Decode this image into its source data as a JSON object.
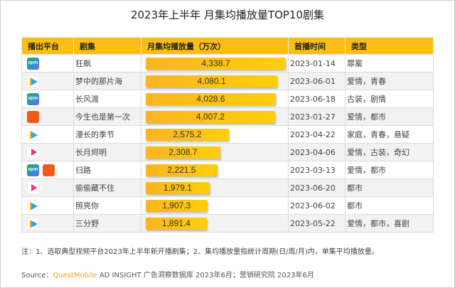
{
  "chart_data": {
    "type": "table",
    "title": "2023年上半年 月集均播放量TOP10剧集",
    "columns": [
      "播出平台",
      "剧集",
      "月集均播放量（万次）",
      "首播时间",
      "类型"
    ],
    "rows": [
      {
        "platforms": [
          "iqiyi"
        ],
        "name": "狂飙",
        "value": 4338.7,
        "label": "4,338.7",
        "date": "2023-01-14",
        "genre": "罪案"
      },
      {
        "platforms": [
          "tencent"
        ],
        "name": "梦中的那片海",
        "value": 4080.1,
        "label": "4,080.1",
        "date": "2023-06-01",
        "genre": "爱情，青春"
      },
      {
        "platforms": [
          "iqiyi"
        ],
        "name": "长风渡",
        "value": 4028.6,
        "label": "4,028.6",
        "date": "2023-06-18",
        "genre": "古装，剧情"
      },
      {
        "platforms": [
          "mango"
        ],
        "name": "今生也是第一次",
        "value": 4007.2,
        "label": "4,007.2",
        "date": "2023-01-27",
        "genre": "爱情，都市"
      },
      {
        "platforms": [
          "tencent"
        ],
        "name": "漫长的季节",
        "value": 2575.2,
        "label": "2,575.2",
        "date": "2023-04-22",
        "genre": "家庭，青春，悬疑"
      },
      {
        "platforms": [
          "youku"
        ],
        "name": "长月烬明",
        "value": 2308.7,
        "label": "2,308.7",
        "date": "2023-04-06",
        "genre": "爱情，古装，奇幻"
      },
      {
        "platforms": [
          "iqiyi",
          "mango"
        ],
        "name": "归路",
        "value": 2221.5,
        "label": "2,221.5",
        "date": "2023-03-13",
        "genre": "爱情，都市"
      },
      {
        "platforms": [
          "youku"
        ],
        "name": "偷偷藏不住",
        "value": 1979.1,
        "label": "1,979.1",
        "date": "2023-06-20",
        "genre": "都市"
      },
      {
        "platforms": [
          "tencent"
        ],
        "name": "照亮你",
        "value": 1907.3,
        "label": "1,907.3",
        "date": "2023-06-02",
        "genre": "都市"
      },
      {
        "platforms": [
          "tencent"
        ],
        "name": "三分野",
        "value": 1891.4,
        "label": "1,891.4",
        "date": "2023-05-22",
        "genre": "爱情，都市，喜剧"
      }
    ],
    "xlim": [
      0,
      4338.7
    ],
    "colors": {
      "header": "#fbbd16",
      "bar": "#fec514"
    }
  },
  "platform_icons": {
    "iqiyi": "iQIYI",
    "tencent": "",
    "mango": "",
    "youku": "YOUKU"
  },
  "note": "注：1、选取典型视频平台2023年上半年新开播剧集；2、集均播放量指统计周期(日/周/月)内，单集平均播放量。",
  "source": {
    "prefix": "Source：",
    "brand": "QuestMobile",
    "rest": " AD INSIGHT 广告洞察数据库 2023年6月；营销研究院 2023年6月"
  }
}
